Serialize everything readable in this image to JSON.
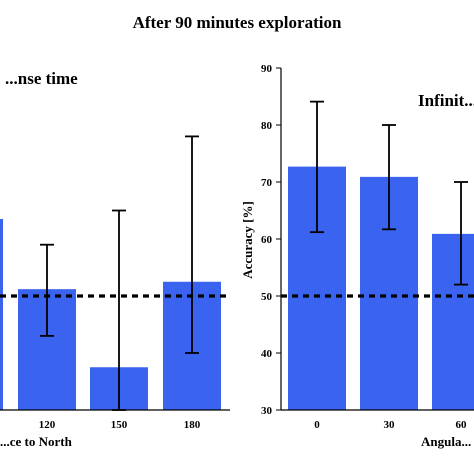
{
  "figure": {
    "title": "After 90 minutes exploration"
  },
  "chart_data": [
    {
      "type": "bar",
      "title": "...nse time",
      "xlabel": "...ce to North",
      "ylabel": "",
      "categories": [
        "...",
        "120",
        "150",
        "180"
      ],
      "values": [
        63.5,
        51.2,
        37.5,
        52.5
      ],
      "errors_low": [
        null,
        43.0,
        30.0,
        40.0
      ],
      "errors_high": [
        null,
        59.0,
        65.0,
        78.0
      ],
      "reference_line": 50,
      "ylim": [
        30,
        90
      ],
      "bar_color": "#3a64f0"
    },
    {
      "type": "bar",
      "title": "Infinit...",
      "xlabel": "Angula...",
      "ylabel": "Accuracy [%]",
      "categories": [
        "0",
        "30",
        "60"
      ],
      "values": [
        72.7,
        70.9,
        60.9
      ],
      "errors_low": [
        61.2,
        61.7,
        52.0
      ],
      "errors_high": [
        84.1,
        80.0,
        70.0
      ],
      "reference_line": 50,
      "ylim": [
        30,
        90
      ],
      "yticks": [
        "30",
        "40",
        "50",
        "60",
        "70",
        "80",
        "90"
      ],
      "bar_color": "#3a64f0"
    }
  ]
}
